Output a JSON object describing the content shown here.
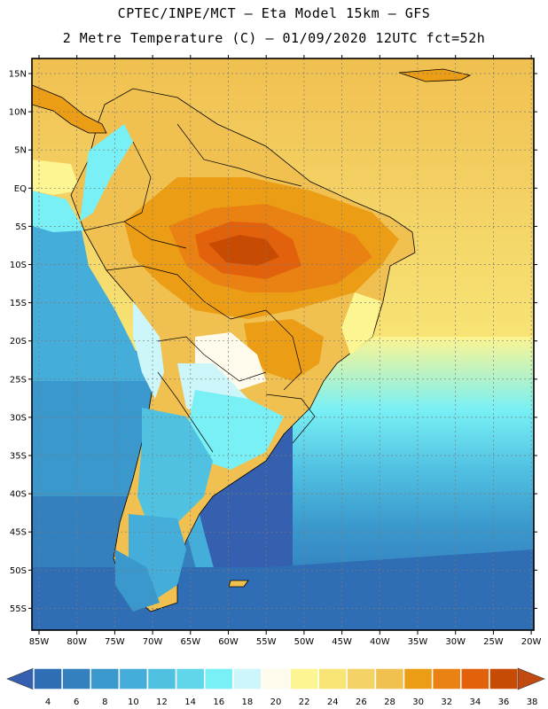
{
  "header": {
    "line1": "CPTEC/INPE/MCT –  Eta Model 15km – GFS",
    "line2": "2 Metre Temperature (C) – 01/09/2020 12UTC fct=52h"
  },
  "map": {
    "lat_labels": [
      "15N",
      "10N",
      "5N",
      "EQ",
      "5S",
      "10S",
      "15S",
      "20S",
      "25S",
      "30S",
      "35S",
      "40S",
      "45S",
      "50S",
      "55S"
    ],
    "lon_labels": [
      "85W",
      "80W",
      "75W",
      "70W",
      "65W",
      "60W",
      "55W",
      "50W",
      "45W",
      "40W",
      "35W",
      "30W",
      "25W",
      "20W"
    ],
    "legend_values": [
      "4",
      "6",
      "8",
      "10",
      "12",
      "14",
      "16",
      "18",
      "20",
      "22",
      "24",
      "26",
      "28",
      "30",
      "32",
      "34",
      "36",
      "38"
    ],
    "legend_colors": [
      "#2f6eb4",
      "#3480bf",
      "#3a98cc",
      "#45adda",
      "#51c1e2",
      "#5fd6ea",
      "#78f0f5",
      "#cdf6fa",
      "#fefaec",
      "#fdf591",
      "#f8e576",
      "#f4d265",
      "#f0c050",
      "#ec9d16",
      "#e98212",
      "#e2610c",
      "#c84b04"
    ],
    "low_color": "#3560b0",
    "high_color": "#c04a10"
  }
}
